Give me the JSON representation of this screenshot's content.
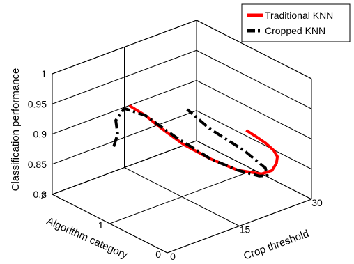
{
  "chart_data": {
    "type": "line",
    "projection": "3d",
    "title": "",
    "xlabel": "Crop threshold",
    "ylabel": "Algorithm category",
    "zlabel": "Classification performance",
    "xlim": [
      0,
      30
    ],
    "ylim": [
      0,
      2
    ],
    "zlim": [
      0.8,
      1
    ],
    "xticks": [
      "0",
      "15",
      "30"
    ],
    "yticks": [
      "0",
      "1",
      "2"
    ],
    "zticks": [
      "0.8",
      "0.85",
      "0.9",
      "0.95",
      "1"
    ],
    "grid": true,
    "legend_position": "top-right",
    "series": [
      {
        "name": "Traditional KNN",
        "color": "#ff0000",
        "linestyle": "solid",
        "points": [
          {
            "x": 16,
            "y": 2.0,
            "z": 0.9
          },
          {
            "x": 17,
            "y": 1.8,
            "z": 0.89
          },
          {
            "x": 18,
            "y": 1.6,
            "z": 0.875
          },
          {
            "x": 19,
            "y": 1.3,
            "z": 0.86
          },
          {
            "x": 21,
            "y": 1.0,
            "z": 0.845
          },
          {
            "x": 23,
            "y": 0.7,
            "z": 0.835
          },
          {
            "x": 25,
            "y": 0.45,
            "z": 0.835
          },
          {
            "x": 25.6,
            "y": 0.32,
            "z": 0.845
          },
          {
            "x": 25.7,
            "y": 0.25,
            "z": 0.86
          },
          {
            "x": 25.3,
            "y": 0.2,
            "z": 0.875
          },
          {
            "x": 24.5,
            "y": 0.2,
            "z": 0.888
          },
          {
            "x": 23.5,
            "y": 0.25,
            "z": 0.9
          },
          {
            "x": 22.5,
            "y": 0.35,
            "z": 0.91
          },
          {
            "x": 21.8,
            "y": 0.45,
            "z": 0.917
          }
        ]
      },
      {
        "name": "Cropped KNN",
        "color": "#000000",
        "linestyle": "dashdot",
        "points": [
          {
            "x": 8,
            "y": 1.6,
            "z": 0.875
          },
          {
            "x": 10,
            "y": 1.7,
            "z": 0.885
          },
          {
            "x": 12,
            "y": 1.9,
            "z": 0.892
          },
          {
            "x": 15,
            "y": 2.0,
            "z": 0.898
          },
          {
            "x": 17,
            "y": 1.8,
            "z": 0.89
          },
          {
            "x": 19,
            "y": 1.4,
            "z": 0.865
          },
          {
            "x": 21,
            "y": 1.0,
            "z": 0.845
          },
          {
            "x": 23,
            "y": 0.7,
            "z": 0.835
          },
          {
            "x": 24.5,
            "y": 0.45,
            "z": 0.833
          },
          {
            "x": 25,
            "y": 0.35,
            "z": 0.837
          },
          {
            "x": 24,
            "y": 0.3,
            "z": 0.855
          },
          {
            "x": 22,
            "y": 0.5,
            "z": 0.88
          },
          {
            "x": 19.5,
            "y": 0.9,
            "z": 0.905
          },
          {
            "x": 18.5,
            "y": 1.2,
            "z": 0.925
          }
        ]
      }
    ]
  }
}
